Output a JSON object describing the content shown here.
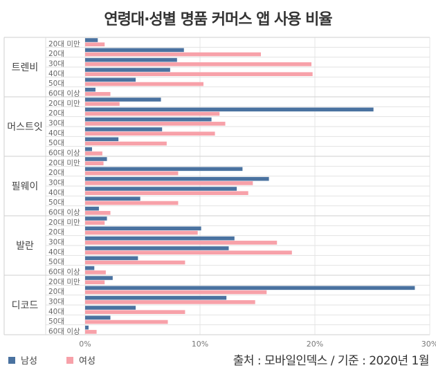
{
  "chart_data": {
    "type": "bar",
    "orientation": "horizontal",
    "title": "연령대·성별 명품 커머스 앱 사용 비율",
    "groups": [
      "트렌비",
      "머스트잇",
      "필웨이",
      "발란",
      "디코드"
    ],
    "categories": [
      "20대 미만",
      "20대",
      "30대",
      "40대",
      "50대",
      "60대 이상"
    ],
    "series": [
      {
        "name": "남성",
        "color": "#4a72a0",
        "values": [
          [
            1.1,
            8.6,
            8.0,
            7.4,
            4.4,
            0.9
          ],
          [
            6.6,
            25.1,
            11.0,
            6.7,
            2.9,
            0.6
          ],
          [
            1.9,
            13.7,
            16.0,
            13.2,
            4.8,
            1.2
          ],
          [
            1.9,
            10.1,
            13.0,
            12.5,
            4.6,
            0.8
          ],
          [
            2.4,
            28.7,
            12.3,
            4.4,
            2.2,
            0.3
          ]
        ]
      },
      {
        "name": "여성",
        "color": "#f7a1a9",
        "values": [
          [
            1.7,
            15.3,
            19.7,
            19.8,
            10.3,
            2.2
          ],
          [
            3.0,
            11.7,
            12.2,
            11.3,
            7.1,
            1.5
          ],
          [
            1.6,
            8.1,
            14.6,
            14.2,
            8.1,
            2.2
          ],
          [
            1.7,
            9.8,
            16.7,
            18.0,
            8.7,
            1.8
          ],
          [
            1.7,
            15.8,
            14.8,
            8.7,
            7.2,
            1.0
          ]
        ]
      }
    ],
    "xticks": [
      "0%",
      "10%",
      "20%",
      "30%"
    ],
    "xlim": [
      0,
      30
    ],
    "unit": "%",
    "grid": true,
    "legend_position": "bottom-left",
    "source": "출처 : 모바일인덱스 / 기준 : 2020년 1월"
  }
}
